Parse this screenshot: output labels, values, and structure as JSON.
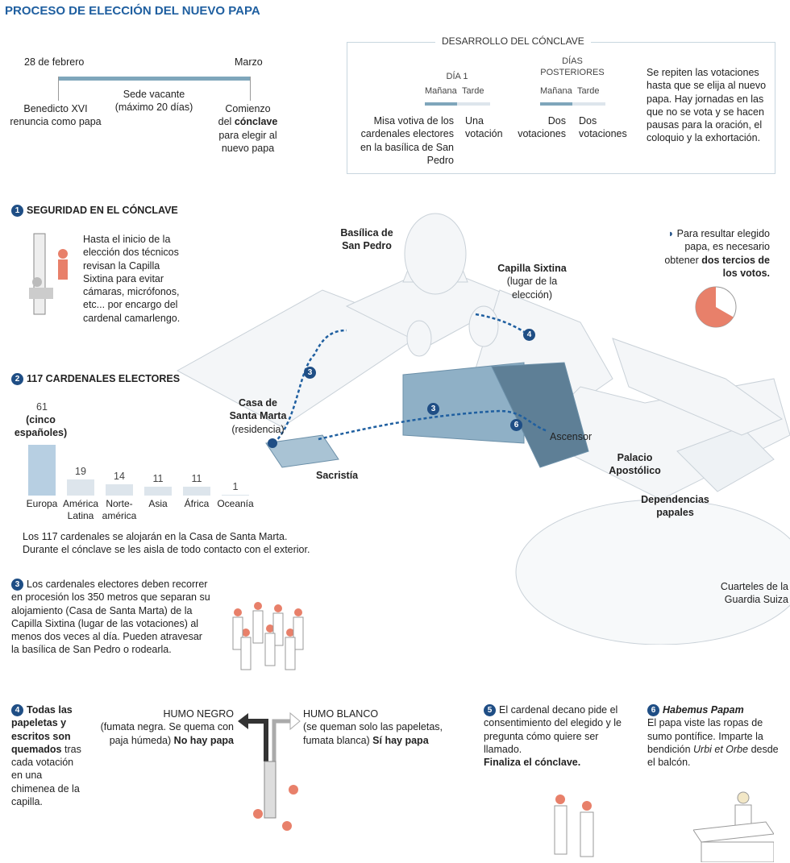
{
  "title": "PROCESO DE ELECCIÓN DEL NUEVO PAPA",
  "timeline": {
    "start": "28 de febrero",
    "end": "Marzo",
    "middle": "Sede vacante (máximo 20 días)",
    "left": "Benedicto XVI renuncia como papa",
    "right_a": "Comienzo",
    "right_b": "del",
    "right_bold": "cónclave",
    "right_c": "para elegir al nuevo papa"
  },
  "conclave": {
    "title": "DESARROLLO DEL CÓNCLAVE",
    "day1": "DÍA 1",
    "later": "DÍAS POSTERIORES",
    "morning": "Mañana",
    "afternoon": "Tarde",
    "d1_morning": "Misa votiva de los cardenales electores en la basílica de San Pedro",
    "d1_afternoon": "Una votación",
    "later_morning": "Dos votaciones",
    "later_afternoon": "Dos votaciones",
    "note": "Se repiten las votaciones hasta que se elija al nuevo papa. Hay jornadas en las que no se vota y se hacen pausas para la oración, el coloquio y la exhortación."
  },
  "s1": {
    "n": "1",
    "title": "SEGURIDAD EN EL CÓNCLAVE",
    "text": "Hasta el inicio de la elección dos técnicos revisan la Capilla Sixtina para evitar cámaras, micrófonos, etc... por encargo del cardenal camarlengo."
  },
  "pie": {
    "text_a": "Para resultar elegido papa, es necesario obtener",
    "text_bold": "dos tercios de los votos.",
    "fraction": 0.6667,
    "color": "#e8806a"
  },
  "s2": {
    "n": "2",
    "title": "117 CARDENALES ELECTORES",
    "note": "(cinco españoles)",
    "footer": "Los 117 cardenales se alojarán en la Casa de Santa Marta. Durante el cónclave se les aisla de todo contacto con el exterior."
  },
  "chart_data": {
    "type": "bar",
    "categories": [
      "Europa",
      "América Latina",
      "Norte-américa",
      "Asia",
      "África",
      "Oceanía"
    ],
    "values": [
      61,
      19,
      14,
      11,
      11,
      1
    ],
    "colors": [
      "#b7cfe2",
      "#dde5ec",
      "#dde5ec",
      "#dde5ec",
      "#dde5ec",
      "#dde5ec"
    ]
  },
  "s3": {
    "n": "3",
    "text": "Los cardenales electores deben recorrer en procesión los 350 metros que separan su alojamiento (Casa de Santa Marta) de la Capilla Sixtina (lugar de las votaciones) al menos dos veces al día. Pueden atravesar la basílica de San Pedro o rodearla."
  },
  "s4": {
    "n": "4",
    "bold": "Todas las papeletas y escritos son quemados",
    "text": "tras cada votación en una chimenea de la capilla.",
    "black_title": "HUMO NEGRO",
    "black_text": "(fumata negra. Se quema con paja húmeda)",
    "black_bold": "No hay papa",
    "white_title": "HUMO BLANCO",
    "white_text": "(se queman solo las papeletas, fumata blanca)",
    "white_bold": "Sí hay papa"
  },
  "s5": {
    "n": "5",
    "text": "El cardenal decano pide el consentimiento del elegido y le pregunta cómo quiere ser llamado.",
    "bold": "Finaliza el cónclave."
  },
  "s6": {
    "n": "6",
    "italic": "Habemus Papam",
    "text_a": "El papa viste las ropas de sumo pontífice. Imparte la bendición",
    "italic2": "Urbi et Orbe",
    "text_b": "desde el balcón."
  },
  "map": {
    "basilica": "Basílica de San Pedro",
    "sixtina": "Capilla Sixtina",
    "sixtina_note": "(lugar de la elección)",
    "marta": "Casa de Santa Marta",
    "marta_note": "(residencia)",
    "sacristia": "Sacristía",
    "ascensor": "Ascensor",
    "palacio": "Palacio Apostólico",
    "dependencias": "Dependencias papales",
    "cuarteles": "Cuarteles de la Guardia Suiza",
    "m3": "3",
    "m4": "4",
    "m6": "6"
  }
}
